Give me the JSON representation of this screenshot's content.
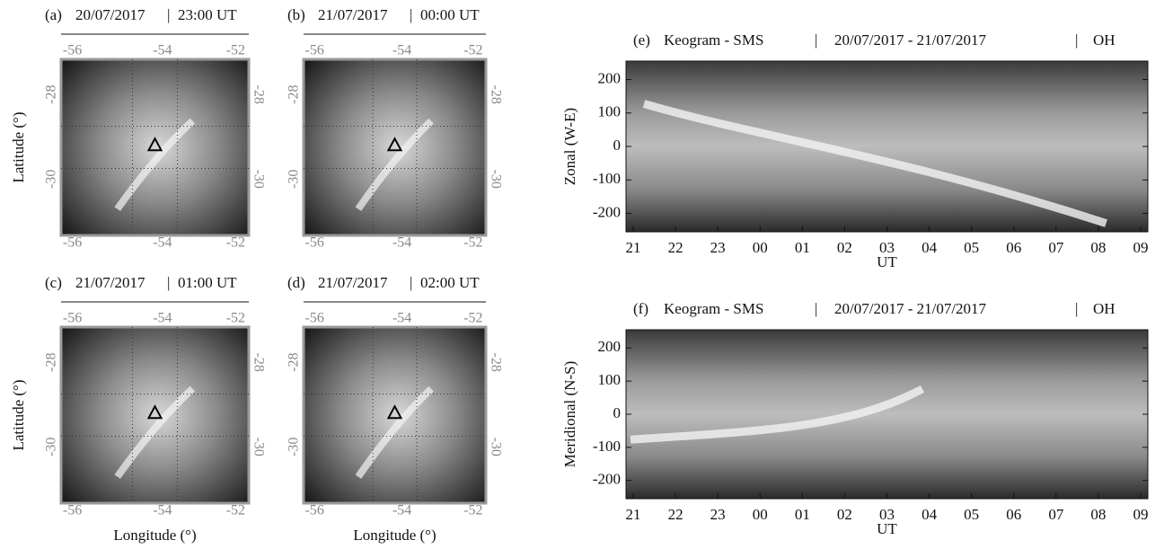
{
  "map_panels": [
    {
      "label": "(a)",
      "date": "20/07/2017",
      "time": "23:00 UT"
    },
    {
      "label": "(b)",
      "date": "21/07/2017",
      "time": "00:00 UT"
    },
    {
      "label": "(c)",
      "date": "21/07/2017",
      "time": "01:00 UT"
    },
    {
      "label": "(d)",
      "date": "21/07/2017",
      "time": "02:00 UT"
    }
  ],
  "map_axes": {
    "x_label": "Longitude (°)",
    "y_label": "Latitude (°)",
    "lon_ticks": [
      -56,
      -54,
      -52
    ],
    "lat_ticks": [
      -28,
      -30
    ]
  },
  "keograms": [
    {
      "label": "(e)",
      "title": "Keogram - SMS",
      "dates": "20/07/2017 - 21/07/2017",
      "emission": "OH",
      "y_label": "Zonal (W-E)",
      "x_label": "UT",
      "ylim": [
        -255,
        255
      ],
      "yticks": [
        200,
        100,
        0,
        -100,
        -200
      ],
      "xticks": [
        "21",
        "22",
        "23",
        "00",
        "01",
        "02",
        "03",
        "04",
        "05",
        "06",
        "07",
        "08",
        "09"
      ]
    },
    {
      "label": "(f)",
      "title": "Keogram - SMS",
      "dates": "20/07/2017 - 21/07/2017",
      "emission": "OH",
      "y_label": "Meridional (N-S)",
      "x_label": "UT",
      "ylim": [
        -255,
        255
      ],
      "yticks": [
        200,
        100,
        0,
        -100,
        -200
      ],
      "xticks": [
        "21",
        "22",
        "23",
        "00",
        "01",
        "02",
        "03",
        "04",
        "05",
        "06",
        "07",
        "08",
        "09"
      ]
    }
  ]
}
